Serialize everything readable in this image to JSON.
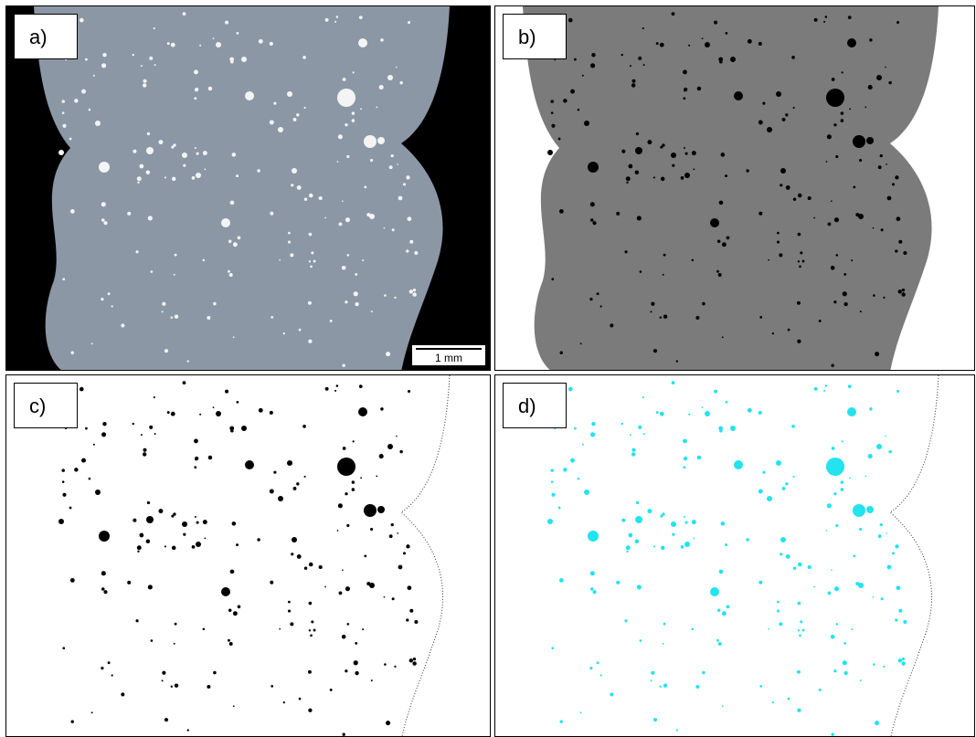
{
  "panels": [
    {
      "label": "a)"
    },
    {
      "label": "b)"
    },
    {
      "label": "c)"
    },
    {
      "label": "d)"
    }
  ],
  "scale_bar": "1 mm"
}
